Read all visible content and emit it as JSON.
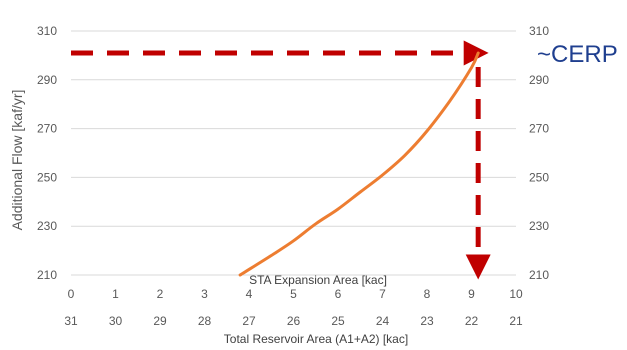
{
  "chart_data": {
    "type": "line",
    "ylabel": "Additional Flow [kaf/yr]",
    "ylim": [
      210,
      310
    ],
    "yticks": [
      210,
      230,
      250,
      270,
      290,
      310
    ],
    "y2ticks": [
      210,
      230,
      250,
      270,
      290,
      310
    ],
    "xlabel": "STA Expansion Area [kac]",
    "xlim": [
      0,
      10
    ],
    "xticks": [
      0,
      1,
      2,
      3,
      4,
      5,
      6,
      7,
      8,
      9,
      10
    ],
    "x2label": "Total Reservoir Area (A1+A2) [kac]",
    "x2ticks": [
      "31",
      "30",
      "29",
      "28",
      "27",
      "26",
      "25",
      "24",
      "23",
      "22",
      "21"
    ],
    "grid": "horizontal",
    "series": [
      {
        "color": "#ed7d31",
        "x": [
          3.8,
          4.5,
          5.0,
          5.5,
          6.0,
          6.5,
          7.0,
          7.5,
          8.0,
          8.5,
          9.0,
          9.15
        ],
        "y": [
          210,
          218,
          224,
          231,
          237,
          244,
          251,
          259,
          269,
          281,
          295,
          301
        ]
      }
    ],
    "reference_lines": {
      "color": "#c00000",
      "horizontal": {
        "y": 301,
        "x_from": 0,
        "x_to": 9.15
      },
      "vertical": {
        "x": 9.15,
        "y_from": 301,
        "y_to": 210
      }
    },
    "annotation": {
      "text": "~CERP",
      "color": "#1f3f8f"
    }
  }
}
